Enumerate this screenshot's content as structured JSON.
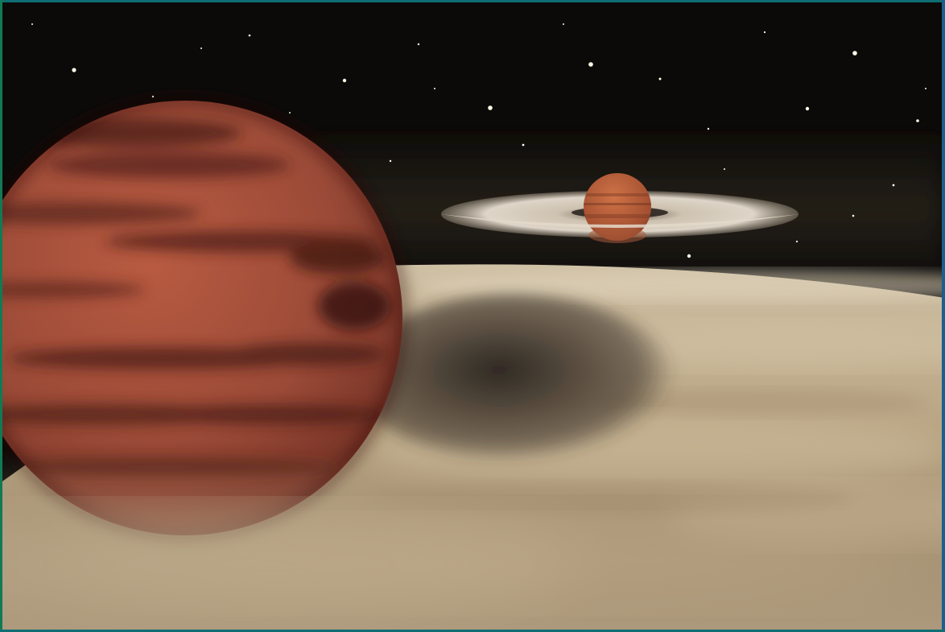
{
  "image": {
    "frame_colors": {
      "top": "#0f6e73",
      "left": "#117a55",
      "right": "#1a5f8f"
    },
    "palette": {
      "space": "#0b0a08",
      "planet_near": "#a14f3b",
      "planet_far": "#b4623e",
      "disk": "#c7b393",
      "ring": "#e7ddd0"
    }
  }
}
